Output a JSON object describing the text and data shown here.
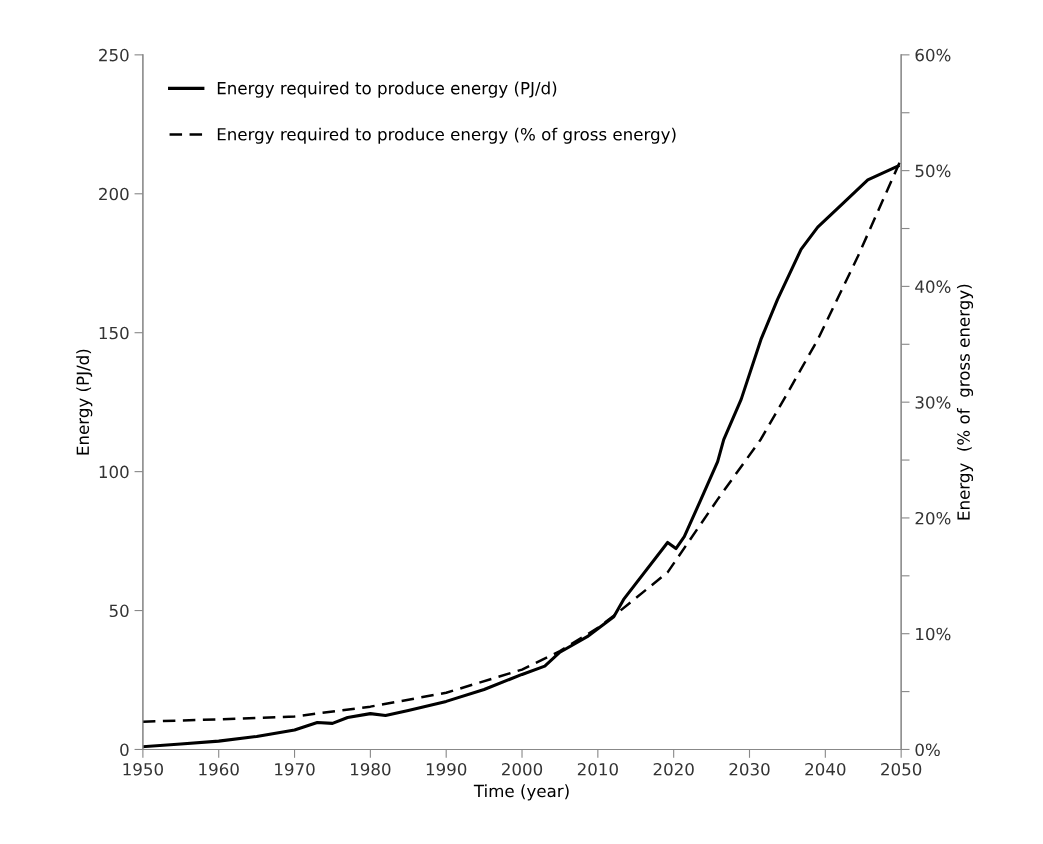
{
  "chart_data": {
    "type": "line",
    "xlabel": "Time (year)",
    "ylabel": "Energy (PJ/d)",
    "y2label": "Energy  (% of  gross energy)",
    "xlim": [
      1950,
      2050
    ],
    "xticks": [
      1950,
      1960,
      1970,
      1980,
      1990,
      2000,
      2010,
      2020,
      2030,
      2040,
      2050
    ],
    "ylim": [
      0,
      250
    ],
    "yticks": [
      0,
      50,
      100,
      150,
      200,
      250
    ],
    "y2lim": [
      0,
      60
    ],
    "y2ticks": [
      {
        "value": 0,
        "label": "0%"
      },
      {
        "value": 5,
        "label": null
      },
      {
        "value": 10,
        "label": "10%"
      },
      {
        "value": 15,
        "label": null
      },
      {
        "value": 20,
        "label": "20%"
      },
      {
        "value": 25,
        "label": null
      },
      {
        "value": 30,
        "label": "30%"
      },
      {
        "value": 35,
        "label": null
      },
      {
        "value": 40,
        "label": "40%"
      },
      {
        "value": 45,
        "label": null
      },
      {
        "value": 50,
        "label": "50%"
      },
      {
        "value": 55,
        "label": null
      },
      {
        "value": 60,
        "label": "60%"
      }
    ],
    "legend": "top left",
    "grid": false,
    "marker": "none",
    "series": [
      {
        "name": "Energy required to produce energy (PJ/d)",
        "color": "#000000",
        "line_style": "solid",
        "x": [
          1950,
          1955,
          1960,
          1965,
          1970,
          1973,
          1975,
          1977,
          1980,
          1982,
          1985,
          1990,
          1995,
          2000,
          2003,
          2005,
          2008.6,
          2012.1,
          2013.4,
          2019.2,
          2020.3,
          2021.4,
          2023.6,
          2025.8,
          2026.6,
          2028.9,
          2031.5,
          2033.7,
          2036.8,
          2039,
          2042.5,
          2045.6,
          2049.6
        ],
        "values": [
          1,
          2,
          3,
          4.7,
          7,
          9.7,
          9.4,
          11.5,
          12.9,
          12.2,
          14,
          17.3,
          21.6,
          27,
          30,
          35,
          40.6,
          47.8,
          54,
          74.5,
          72.3,
          76.6,
          90,
          103.6,
          111.5,
          126,
          147.5,
          162,
          180,
          188,
          197,
          205,
          210
        ]
      },
      {
        "name": "Energy required to produce energy (% of gross energy)",
        "color": "#000000",
        "line_style": "dashed",
        "axis": "y2",
        "x": [
          1950,
          1960,
          1970,
          1980,
          1990,
          2000,
          2005,
          2010,
          2012.6,
          2019.2,
          2025.8,
          2031.5,
          2034.5,
          2039,
          2044.3,
          2050
        ],
        "values": [
          2.4,
          2.6,
          2.85,
          3.7,
          4.9,
          6.9,
          8.5,
          10.5,
          11.8,
          15.3,
          21.6,
          26.8,
          30.2,
          35.4,
          42.6,
          51
        ]
      }
    ]
  }
}
